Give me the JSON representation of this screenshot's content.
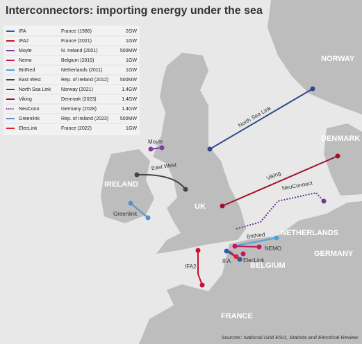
{
  "header": {
    "title": "Interconnectors: importing energy under the sea"
  },
  "legend": {
    "rows": [
      {
        "name": "IFA",
        "destination": "France (1986)",
        "capacity": "2GW",
        "color": "#2a5aa8",
        "dotted": false
      },
      {
        "name": "IFA2",
        "destination": "France (2021)",
        "capacity": "1GW",
        "color": "#c8102e",
        "dotted": false
      },
      {
        "name": "Moyle",
        "destination": "N. Ireland (2001)",
        "capacity": "500MW",
        "color": "#7b3fa0",
        "dotted": false
      },
      {
        "name": "Nemo",
        "destination": "Belgium (2019)",
        "capacity": "1GW",
        "color": "#c2185b",
        "dotted": false
      },
      {
        "name": "BritNed",
        "destination": "Netherlands (2011)",
        "capacity": "1GW",
        "color": "#4aa3df",
        "dotted": false
      },
      {
        "name": "East West",
        "destination": "Rep. of Ireland (2012)",
        "capacity": "500MW",
        "color": "#444444",
        "dotted": false
      },
      {
        "name": "North Sea Link",
        "destination": "Norway (2021)",
        "capacity": "1.4GW",
        "color": "#2e4a8a",
        "dotted": false
      },
      {
        "name": "Viking",
        "destination": "Denmark (2023)",
        "capacity": "1.4GW",
        "color": "#a0122a",
        "dotted": false
      },
      {
        "name": "NeuConn",
        "destination": "Germany (2028)",
        "capacity": "1.4GW",
        "color": "#6a3d8f",
        "dotted": true
      },
      {
        "name": "Greenlink",
        "destination": "Rep. of Ireland (2023)",
        "capacity": "500MW",
        "color": "#5b8fc9",
        "dotted": false
      },
      {
        "name": "ElecLink",
        "destination": "France (2022)",
        "capacity": "1GW",
        "color": "#e0202e",
        "dotted": false
      }
    ]
  },
  "map": {
    "countries": [
      "NORWAY",
      "DENMARK",
      "IRELAND",
      "UK",
      "NETHERLANDS",
      "GERMANY",
      "BELGIUM",
      "FRANCE"
    ],
    "links": [
      "North Sea Link",
      "Moyle",
      "East West",
      "Viking",
      "NeuConnect",
      "Greenlink",
      "BritNed",
      "NEMO",
      "IFA",
      "ElecLink",
      "IFA2"
    ]
  },
  "footer": {
    "source": "Sources: National Grid ESO, Statista and Electrical Review"
  }
}
